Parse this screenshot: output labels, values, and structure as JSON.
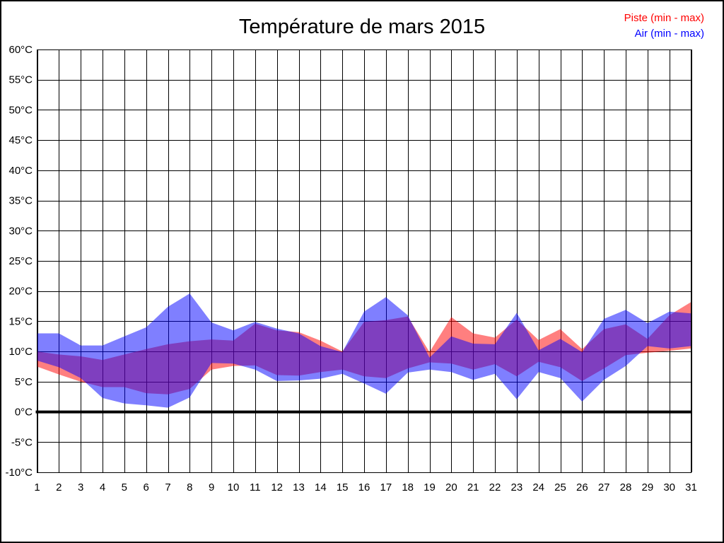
{
  "title": "Température de mars 2015",
  "legend": {
    "piste": {
      "label": "Piste (min - max)",
      "color": "#ff0000"
    },
    "air": {
      "label": "Air (min - max)",
      "color": "#0000ff"
    }
  },
  "chart_data": {
    "type": "area",
    "title": "Température de mars 2015",
    "xlabel": "",
    "ylabel": "",
    "y_unit": "°C",
    "ylim": [
      -10,
      60
    ],
    "y_tick_step": 5,
    "grid": true,
    "zero_line": true,
    "legend_position": "top-right",
    "x": [
      1,
      2,
      3,
      4,
      5,
      6,
      7,
      8,
      9,
      10,
      11,
      12,
      13,
      14,
      15,
      16,
      17,
      18,
      19,
      20,
      21,
      22,
      23,
      24,
      25,
      26,
      27,
      28,
      29,
      30,
      31
    ],
    "series": [
      {
        "name": "Piste (min - max)",
        "color": "#ff0000",
        "fill_opacity": 0.5,
        "min": [
          7.5,
          6.2,
          5.0,
          4.1,
          4.1,
          3.1,
          2.9,
          3.8,
          7.0,
          7.6,
          7.7,
          6.1,
          6.0,
          6.6,
          7.0,
          5.9,
          5.6,
          7.2,
          8.2,
          8.0,
          7.0,
          7.9,
          5.9,
          8.3,
          7.4,
          5.1,
          7.2,
          9.4,
          9.8,
          10.1,
          10.5
        ],
        "max": [
          10.0,
          9.5,
          9.2,
          8.6,
          9.5,
          10.4,
          11.2,
          11.7,
          12.0,
          11.8,
          14.6,
          13.5,
          13.2,
          11.8,
          10.0,
          14.9,
          15.2,
          15.8,
          9.9,
          15.7,
          13.0,
          12.3,
          15.3,
          11.9,
          13.7,
          10.4,
          13.7,
          14.5,
          12.1,
          16.0,
          18.2
        ]
      },
      {
        "name": "Air (min - max)",
        "color": "#0000ff",
        "fill_opacity": 0.5,
        "min": [
          8.5,
          7.4,
          5.6,
          2.3,
          1.4,
          1.1,
          0.7,
          2.4,
          8.1,
          8.0,
          7.0,
          5.1,
          5.2,
          5.5,
          6.3,
          4.7,
          3.0,
          6.5,
          7.0,
          6.6,
          5.3,
          6.3,
          2.1,
          6.6,
          5.6,
          1.7,
          5.3,
          7.6,
          10.9,
          10.5,
          10.9
        ],
        "max": [
          13.0,
          13.0,
          11.0,
          11.0,
          12.5,
          14.0,
          17.4,
          19.6,
          14.8,
          13.5,
          14.9,
          13.8,
          13.0,
          10.9,
          9.9,
          16.6,
          19.0,
          16.0,
          9.0,
          12.5,
          11.3,
          11.2,
          16.4,
          10.2,
          12.1,
          9.9,
          15.4,
          16.9,
          14.7,
          16.6,
          16.3
        ]
      }
    ]
  }
}
